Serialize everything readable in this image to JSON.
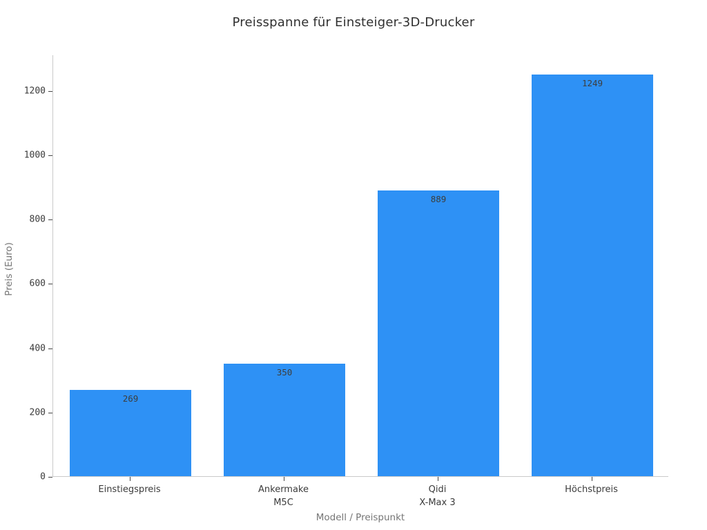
{
  "chart_data": {
    "type": "bar",
    "title": "Preisspanne für Einsteiger-3D-Drucker",
    "xlabel": "Modell / Preispunkt",
    "ylabel": "Preis (Euro)",
    "categories": [
      "Einstiegspreis",
      "Ankermake\nM5C",
      "Qidi\nX-Max 3",
      "Höchstpreis"
    ],
    "values": [
      269,
      350,
      889,
      1249
    ],
    "bar_labels": [
      "269",
      "350",
      "889",
      "1249"
    ],
    "yticks": [
      0,
      200,
      400,
      600,
      800,
      1000,
      1200
    ],
    "ylim": [
      0,
      1311
    ],
    "grid": false,
    "legend": "none",
    "bar_label_position": "inside-top",
    "colors": {
      "bar": "#2e91f5",
      "title": "#303030",
      "tick_label": "#3b3b3b",
      "axis_title": "#757575",
      "spine": "#c9c9c9",
      "tick_mark": "#444444",
      "value_label": "#3d3d3d",
      "background": "#ffffff"
    }
  }
}
